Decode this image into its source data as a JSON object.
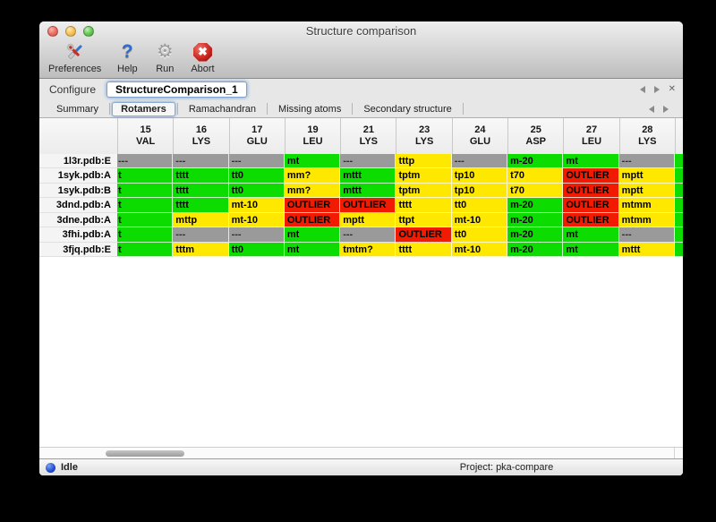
{
  "window": {
    "title": "Structure comparison"
  },
  "toolbar": {
    "buttons": [
      {
        "label": "Preferences",
        "icon": "tools-icon"
      },
      {
        "label": "Help",
        "icon": "question-icon"
      },
      {
        "label": "Run",
        "icon": "gear-icon"
      },
      {
        "label": "Abort",
        "icon": "stop-icon"
      }
    ]
  },
  "configure": {
    "label": "Configure",
    "value": "StructureComparison_1"
  },
  "tabs": [
    "Summary",
    "Rotamers",
    "Ramachandran",
    "Missing atoms",
    "Secondary structure"
  ],
  "active_tab": "Rotamers",
  "colors": {
    "green": "#0ddc00",
    "yellow": "#ffe800",
    "red": "#f01b00",
    "gray": "#9a9a9a"
  },
  "table": {
    "columns": [
      {
        "num": "15",
        "res": "VAL"
      },
      {
        "num": "16",
        "res": "LYS"
      },
      {
        "num": "17",
        "res": "GLU"
      },
      {
        "num": "19",
        "res": "LEU"
      },
      {
        "num": "21",
        "res": "LYS"
      },
      {
        "num": "23",
        "res": "LYS"
      },
      {
        "num": "24",
        "res": "GLU"
      },
      {
        "num": "25",
        "res": "ASP"
      },
      {
        "num": "27",
        "res": "LEU"
      },
      {
        "num": "28",
        "res": "LYS"
      }
    ],
    "edge_column_color": "green",
    "rows": [
      {
        "label": "1l3r.pdb:E",
        "cells": [
          {
            "v": "---",
            "s": "gray"
          },
          {
            "v": "---",
            "s": "gray"
          },
          {
            "v": "---",
            "s": "gray"
          },
          {
            "v": "mt",
            "s": "green"
          },
          {
            "v": "---",
            "s": "gray"
          },
          {
            "v": "tttp",
            "s": "yellow"
          },
          {
            "v": "---",
            "s": "gray"
          },
          {
            "v": "m-20",
            "s": "green"
          },
          {
            "v": "mt",
            "s": "green"
          },
          {
            "v": "---",
            "s": "gray"
          }
        ]
      },
      {
        "label": "1syk.pdb:A",
        "cells": [
          {
            "v": "t",
            "s": "green"
          },
          {
            "v": "tttt",
            "s": "green"
          },
          {
            "v": "tt0",
            "s": "green"
          },
          {
            "v": "mm?",
            "s": "yellow"
          },
          {
            "v": "mttt",
            "s": "green"
          },
          {
            "v": "tptm",
            "s": "yellow"
          },
          {
            "v": "tp10",
            "s": "yellow"
          },
          {
            "v": "t70",
            "s": "yellow"
          },
          {
            "v": "OUTLIER",
            "s": "red"
          },
          {
            "v": "mptt",
            "s": "yellow"
          }
        ]
      },
      {
        "label": "1syk.pdb:B",
        "cells": [
          {
            "v": "t",
            "s": "green"
          },
          {
            "v": "tttt",
            "s": "green"
          },
          {
            "v": "tt0",
            "s": "green"
          },
          {
            "v": "mm?",
            "s": "yellow"
          },
          {
            "v": "mttt",
            "s": "green"
          },
          {
            "v": "tptm",
            "s": "yellow"
          },
          {
            "v": "tp10",
            "s": "yellow"
          },
          {
            "v": "t70",
            "s": "yellow"
          },
          {
            "v": "OUTLIER",
            "s": "red"
          },
          {
            "v": "mptt",
            "s": "yellow"
          }
        ]
      },
      {
        "label": "3dnd.pdb:A",
        "cells": [
          {
            "v": "t",
            "s": "green"
          },
          {
            "v": "tttt",
            "s": "green"
          },
          {
            "v": "mt-10",
            "s": "yellow"
          },
          {
            "v": "OUTLIER",
            "s": "red"
          },
          {
            "v": "OUTLIER",
            "s": "red"
          },
          {
            "v": "tttt",
            "s": "yellow"
          },
          {
            "v": "tt0",
            "s": "yellow"
          },
          {
            "v": "m-20",
            "s": "green"
          },
          {
            "v": "OUTLIER",
            "s": "red"
          },
          {
            "v": "mtmm",
            "s": "yellow"
          }
        ]
      },
      {
        "label": "3dne.pdb:A",
        "cells": [
          {
            "v": "t",
            "s": "green"
          },
          {
            "v": "mttp",
            "s": "yellow"
          },
          {
            "v": "mt-10",
            "s": "yellow"
          },
          {
            "v": "OUTLIER",
            "s": "red"
          },
          {
            "v": "mptt",
            "s": "yellow"
          },
          {
            "v": "ttpt",
            "s": "yellow"
          },
          {
            "v": "mt-10",
            "s": "yellow"
          },
          {
            "v": "m-20",
            "s": "green"
          },
          {
            "v": "OUTLIER",
            "s": "red"
          },
          {
            "v": "mtmm",
            "s": "yellow"
          }
        ]
      },
      {
        "label": "3fhi.pdb:A",
        "cells": [
          {
            "v": "t",
            "s": "green"
          },
          {
            "v": "---",
            "s": "gray"
          },
          {
            "v": "---",
            "s": "gray"
          },
          {
            "v": "mt",
            "s": "green"
          },
          {
            "v": "---",
            "s": "gray"
          },
          {
            "v": "OUTLIER",
            "s": "red"
          },
          {
            "v": "tt0",
            "s": "yellow"
          },
          {
            "v": "m-20",
            "s": "green"
          },
          {
            "v": "mt",
            "s": "green"
          },
          {
            "v": "---",
            "s": "gray"
          }
        ]
      },
      {
        "label": "3fjq.pdb:E",
        "cells": [
          {
            "v": "t",
            "s": "green"
          },
          {
            "v": "tttm",
            "s": "yellow"
          },
          {
            "v": "tt0",
            "s": "green"
          },
          {
            "v": "mt",
            "s": "green"
          },
          {
            "v": "tmtm?",
            "s": "yellow"
          },
          {
            "v": "tttt",
            "s": "yellow"
          },
          {
            "v": "mt-10",
            "s": "yellow"
          },
          {
            "v": "m-20",
            "s": "green"
          },
          {
            "v": "mt",
            "s": "green"
          },
          {
            "v": "mttt",
            "s": "yellow"
          }
        ]
      }
    ]
  },
  "status": {
    "state": "Idle",
    "project": "Project: pka-compare"
  }
}
